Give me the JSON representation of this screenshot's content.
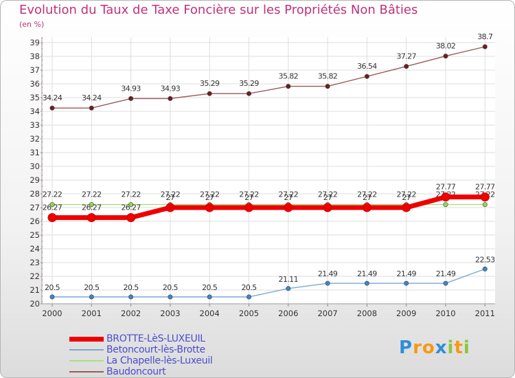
{
  "title": "Evolution du Taux de Taxe Foncière sur les Propriétés Non Bâties",
  "unit_label": "(en %)",
  "brand": {
    "letters": [
      "P",
      "r",
      "o",
      "x",
      "i",
      "t",
      "i"
    ],
    "colors": [
      "#2e8fd6",
      "#f59a14",
      "#f59a14",
      "#2e8fd6",
      "#8bc53f",
      "#f59a14",
      "#8bc53f"
    ]
  },
  "chart_data": {
    "type": "line",
    "title": "Evolution du Taux de Taxe Foncière sur les Propriétés Non Bâties",
    "ylabel": "(en %)",
    "xlabel": "",
    "ylim": [
      20,
      39
    ],
    "yticks": [
      "20",
      "21",
      "22",
      "23",
      "24",
      "25",
      "26",
      "27",
      "28",
      "29",
      "30",
      "31",
      "32",
      "33",
      "34",
      "35",
      "36",
      "37",
      "38",
      "39"
    ],
    "categories": [
      "2000",
      "2001",
      "2002",
      "2003",
      "2004",
      "2005",
      "2006",
      "2007",
      "2008",
      "2009",
      "2010",
      "2011"
    ],
    "grid": true,
    "series": [
      {
        "name": "Baudoncourt",
        "color": "#6b1f1f",
        "line_color": "#9a5a5a",
        "weight": "thin",
        "values": [
          34.24,
          34.24,
          34.93,
          34.93,
          35.29,
          35.29,
          35.82,
          35.82,
          36.54,
          37.27,
          38.02,
          38.7
        ],
        "labels": [
          "34.24",
          "34.24",
          "34.93",
          "34.93",
          "35.29",
          "35.29",
          "35.82",
          "35.82",
          "36.54",
          "37.27",
          "38.02",
          "38.7"
        ]
      },
      {
        "name": "La Chapelle-lès-Luxeuil",
        "color": "#8fdc4a",
        "line_color": "#a8e080",
        "weight": "thin",
        "values": [
          27.22,
          27.22,
          27.22,
          27.22,
          27.22,
          27.22,
          27.22,
          27.22,
          27.22,
          27.22,
          27.22,
          27.22
        ],
        "labels": [
          "27.22",
          "27.22",
          "27.22",
          "27.22",
          "27.22",
          "27.22",
          "27.22",
          "27.22",
          "27.22",
          "27.22",
          "27.22",
          "27.22"
        ]
      },
      {
        "name": "BROTTE-LèS-LUXEUIL",
        "color": "#ee0000",
        "line_color": "#ee0000",
        "weight": "thick",
        "values": [
          26.27,
          26.27,
          26.27,
          27,
          27,
          27,
          27,
          27,
          27,
          27,
          27.77,
          27.77
        ],
        "labels": [
          "26.27",
          "26.27",
          "26.27",
          "27",
          "27",
          "27",
          "27",
          "27",
          "27",
          "27",
          "27.77",
          "27.77"
        ]
      },
      {
        "name": "Betoncourt-lès-Brotte",
        "color": "#3a87c8",
        "line_color": "#7aa8d0",
        "weight": "thin",
        "values": [
          20.5,
          20.5,
          20.5,
          20.5,
          20.5,
          20.5,
          21.11,
          21.49,
          21.49,
          21.49,
          21.49,
          22.53
        ],
        "labels": [
          "20.5",
          "20.5",
          "20.5",
          "20.5",
          "20.5",
          "20.5",
          "21.11",
          "21.49",
          "21.49",
          "21.49",
          "21.49",
          "22.53"
        ]
      }
    ],
    "legend": [
      {
        "name": "BROTTE-LèS-LUXEUIL",
        "color": "#ee0000",
        "weight": "thick"
      },
      {
        "name": "Betoncourt-lès-Brotte",
        "color": "#7aa8d0",
        "weight": "thin"
      },
      {
        "name": "La Chapelle-lès-Luxeuil",
        "color": "#a8e080",
        "weight": "thin"
      },
      {
        "name": "Baudoncourt",
        "color": "#9a5a5a",
        "weight": "thin"
      }
    ]
  }
}
